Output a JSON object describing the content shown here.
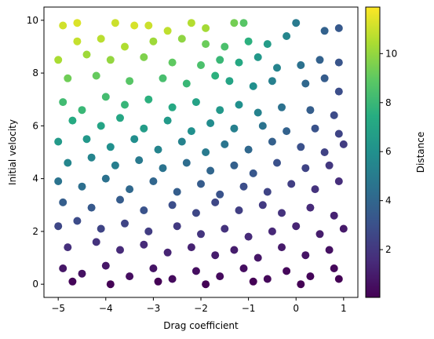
{
  "chart_data": {
    "type": "scatter",
    "title": "",
    "xlabel": "Drag coefficient",
    "ylabel": "Initial velocity",
    "xlim": [
      -5.3,
      1.3
    ],
    "ylim": [
      -0.5,
      10.5
    ],
    "x_ticks": [
      -5,
      -4,
      -3,
      -2,
      -1,
      0,
      1
    ],
    "x_tick_labels": [
      "−5",
      "−4",
      "−3",
      "−2",
      "−1",
      "0",
      "1"
    ],
    "y_ticks": [
      0,
      2,
      4,
      6,
      8,
      10
    ],
    "y_tick_labels": [
      "0",
      "2",
      "4",
      "6",
      "8",
      "10"
    ],
    "grid": false,
    "colormap": "viridis",
    "colorbar": {
      "label": "Distance",
      "range": [
        0.05,
        11.9
      ],
      "ticks": [
        2,
        4,
        6,
        8,
        10
      ],
      "tick_labels": [
        "2",
        "4",
        "6",
        "8",
        "10"
      ]
    },
    "points": [
      [
        -4.9,
        9.8,
        11.1
      ],
      [
        -4.6,
        9.9,
        11.3
      ],
      [
        -3.8,
        9.9,
        11.0
      ],
      [
        -3.4,
        9.8,
        11.2
      ],
      [
        -3.1,
        9.8,
        11.0
      ],
      [
        -2.7,
        9.6,
        10.8
      ],
      [
        -2.2,
        9.9,
        10.6
      ],
      [
        -1.9,
        9.7,
        10.3
      ],
      [
        -1.3,
        9.9,
        9.4
      ],
      [
        -1.1,
        9.9,
        8.8
      ],
      [
        -4.6,
        9.2,
        10.9
      ],
      [
        -4.1,
        9.3,
        10.7
      ],
      [
        -3.6,
        9.0,
        10.5
      ],
      [
        -3.0,
        9.2,
        10.2
      ],
      [
        -2.4,
        9.3,
        9.9
      ],
      [
        -1.9,
        9.1,
        9.2
      ],
      [
        -1.5,
        9.0,
        8.5
      ],
      [
        -1.0,
        9.2,
        7.6
      ],
      [
        -0.6,
        9.1,
        6.6
      ],
      [
        -0.2,
        9.4,
        5.5
      ],
      [
        0.0,
        9.9,
        4.9
      ],
      [
        0.6,
        9.6,
        3.8
      ],
      [
        0.9,
        9.7,
        3.4
      ],
      [
        -5.0,
        8.5,
        10.4
      ],
      [
        -4.4,
        8.7,
        10.2
      ],
      [
        -3.9,
        8.5,
        10.0
      ],
      [
        -3.2,
        8.6,
        9.6
      ],
      [
        -2.6,
        8.4,
        9.0
      ],
      [
        -2.0,
        8.3,
        8.5
      ],
      [
        -1.6,
        8.5,
        8.0
      ],
      [
        -1.2,
        8.4,
        7.2
      ],
      [
        -0.8,
        8.6,
        6.4
      ],
      [
        -0.4,
        8.2,
        5.4
      ],
      [
        0.1,
        8.3,
        4.5
      ],
      [
        0.5,
        8.5,
        3.8
      ],
      [
        0.9,
        8.4,
        3.2
      ],
      [
        -4.8,
        7.8,
        9.3
      ],
      [
        -4.2,
        7.9,
        9.1
      ],
      [
        -3.5,
        7.7,
        8.8
      ],
      [
        -2.8,
        7.8,
        8.4
      ],
      [
        -2.3,
        7.6,
        8.0
      ],
      [
        -1.7,
        7.9,
        7.6
      ],
      [
        -1.4,
        7.7,
        7.0
      ],
      [
        -0.9,
        7.5,
        6.0
      ],
      [
        -0.5,
        7.7,
        5.2
      ],
      [
        0.2,
        7.6,
        4.1
      ],
      [
        0.6,
        7.8,
        3.5
      ],
      [
        0.9,
        7.3,
        2.9
      ],
      [
        -4.9,
        6.9,
        8.2
      ],
      [
        -4.5,
        6.6,
        8.0
      ],
      [
        -4.0,
        7.1,
        8.3
      ],
      [
        -3.6,
        6.8,
        7.9
      ],
      [
        -3.1,
        7.0,
        7.6
      ],
      [
        -2.6,
        6.7,
        7.2
      ],
      [
        -2.1,
        6.9,
        6.9
      ],
      [
        -1.6,
        6.6,
        6.4
      ],
      [
        -1.2,
        6.8,
        6.0
      ],
      [
        -0.8,
        6.5,
        5.3
      ],
      [
        -0.3,
        6.7,
        4.5
      ],
      [
        0.3,
        6.6,
        3.6
      ],
      [
        0.8,
        6.4,
        2.8
      ],
      [
        -4.7,
        6.2,
        7.3
      ],
      [
        -4.1,
        6.0,
        7.0
      ],
      [
        -3.7,
        6.3,
        7.1
      ],
      [
        -3.2,
        5.9,
        6.6
      ],
      [
        -2.7,
        6.2,
        6.5
      ],
      [
        -2.2,
        5.8,
        6.0
      ],
      [
        -1.8,
        6.1,
        5.8
      ],
      [
        -1.3,
        5.9,
        5.2
      ],
      [
        -0.7,
        6.0,
        4.6
      ],
      [
        -0.2,
        5.8,
        3.8
      ],
      [
        0.4,
        5.9,
        3.1
      ],
      [
        0.9,
        5.7,
        2.5
      ],
      [
        -5.0,
        5.4,
        6.5
      ],
      [
        -4.4,
        5.5,
        6.4
      ],
      [
        -3.9,
        5.2,
        6.0
      ],
      [
        -3.4,
        5.5,
        5.9
      ],
      [
        -2.9,
        5.1,
        5.4
      ],
      [
        -2.4,
        5.4,
        5.3
      ],
      [
        -1.9,
        5.0,
        4.9
      ],
      [
        -1.5,
        5.3,
        4.7
      ],
      [
        -1.0,
        5.1,
        4.1
      ],
      [
        -0.5,
        5.4,
        3.7
      ],
      [
        0.1,
        5.2,
        3.0
      ],
      [
        0.6,
        5.0,
        2.4
      ],
      [
        1.0,
        5.3,
        2.2
      ],
      [
        -4.8,
        4.6,
        5.5
      ],
      [
        -4.3,
        4.8,
        5.4
      ],
      [
        -3.8,
        4.5,
        5.1
      ],
      [
        -3.3,
        4.7,
        4.9
      ],
      [
        -2.8,
        4.4,
        4.6
      ],
      [
        -2.3,
        4.6,
        4.3
      ],
      [
        -1.8,
        4.3,
        4.0
      ],
      [
        -1.3,
        4.5,
        3.7
      ],
      [
        -0.9,
        4.2,
        3.3
      ],
      [
        -0.4,
        4.6,
        3.0
      ],
      [
        0.2,
        4.4,
        2.5
      ],
      [
        0.7,
        4.5,
        2.0
      ],
      [
        -5.0,
        3.9,
        4.6
      ],
      [
        -4.5,
        3.7,
        4.4
      ],
      [
        -4.0,
        4.0,
        4.5
      ],
      [
        -3.5,
        3.6,
        4.1
      ],
      [
        -3.0,
        3.9,
        4.0
      ],
      [
        -2.5,
        3.5,
        3.6
      ],
      [
        -2.0,
        3.8,
        3.5
      ],
      [
        -1.6,
        3.4,
        3.1
      ],
      [
        -1.1,
        3.7,
        2.9
      ],
      [
        -0.6,
        3.5,
        2.5
      ],
      [
        -0.1,
        3.8,
        2.3
      ],
      [
        0.4,
        3.6,
        1.8
      ],
      [
        0.9,
        3.9,
        1.6
      ],
      [
        -4.9,
        3.1,
        3.6
      ],
      [
        -4.3,
        2.9,
        3.4
      ],
      [
        -3.7,
        3.2,
        3.5
      ],
      [
        -3.2,
        2.8,
        3.1
      ],
      [
        -2.6,
        3.0,
        2.9
      ],
      [
        -2.1,
        2.7,
        2.6
      ],
      [
        -1.7,
        3.1,
        2.6
      ],
      [
        -1.2,
        2.8,
        2.3
      ],
      [
        -0.7,
        3.0,
        2.1
      ],
      [
        -0.3,
        2.7,
        1.8
      ],
      [
        0.3,
        2.9,
        1.5
      ],
      [
        0.8,
        2.6,
        1.2
      ],
      [
        -5.0,
        2.2,
        2.6
      ],
      [
        -4.6,
        2.4,
        2.8
      ],
      [
        -4.1,
        2.1,
        2.5
      ],
      [
        -3.6,
        2.3,
        2.5
      ],
      [
        -3.1,
        2.0,
        2.2
      ],
      [
        -2.5,
        2.2,
        2.1
      ],
      [
        -2.0,
        1.9,
        1.9
      ],
      [
        -1.5,
        2.1,
        1.8
      ],
      [
        -1.0,
        1.8,
        1.5
      ],
      [
        -0.5,
        2.0,
        1.4
      ],
      [
        0.0,
        2.2,
        1.3
      ],
      [
        0.5,
        1.9,
        1.0
      ],
      [
        1.0,
        2.1,
        0.9
      ],
      [
        -4.8,
        1.4,
        1.7
      ],
      [
        -4.2,
        1.6,
        1.8
      ],
      [
        -3.7,
        1.3,
        1.5
      ],
      [
        -3.2,
        1.5,
        1.5
      ],
      [
        -2.7,
        1.2,
        1.3
      ],
      [
        -2.2,
        1.4,
        1.2
      ],
      [
        -1.7,
        1.1,
        1.0
      ],
      [
        -1.3,
        1.3,
        1.0
      ],
      [
        -0.8,
        1.0,
        0.8
      ],
      [
        -0.3,
        1.4,
        0.9
      ],
      [
        0.2,
        1.1,
        0.7
      ],
      [
        0.7,
        1.3,
        0.6
      ],
      [
        -4.9,
        0.6,
        0.8
      ],
      [
        -4.5,
        0.4,
        0.6
      ],
      [
        -4.0,
        0.7,
        0.8
      ],
      [
        -3.5,
        0.3,
        0.5
      ],
      [
        -3.0,
        0.6,
        0.7
      ],
      [
        -2.6,
        0.2,
        0.4
      ],
      [
        -2.1,
        0.5,
        0.5
      ],
      [
        -1.6,
        0.3,
        0.4
      ],
      [
        -1.1,
        0.6,
        0.5
      ],
      [
        -0.6,
        0.2,
        0.3
      ],
      [
        -0.2,
        0.5,
        0.3
      ],
      [
        0.3,
        0.3,
        0.2
      ],
      [
        0.8,
        0.6,
        0.3
      ],
      [
        -4.7,
        0.1,
        0.2
      ],
      [
        -3.9,
        0.0,
        0.1
      ],
      [
        -2.9,
        0.1,
        0.1
      ],
      [
        -1.9,
        0.0,
        0.1
      ],
      [
        -0.9,
        0.1,
        0.1
      ],
      [
        0.1,
        0.0,
        0.05
      ],
      [
        0.9,
        0.2,
        0.1
      ]
    ]
  }
}
